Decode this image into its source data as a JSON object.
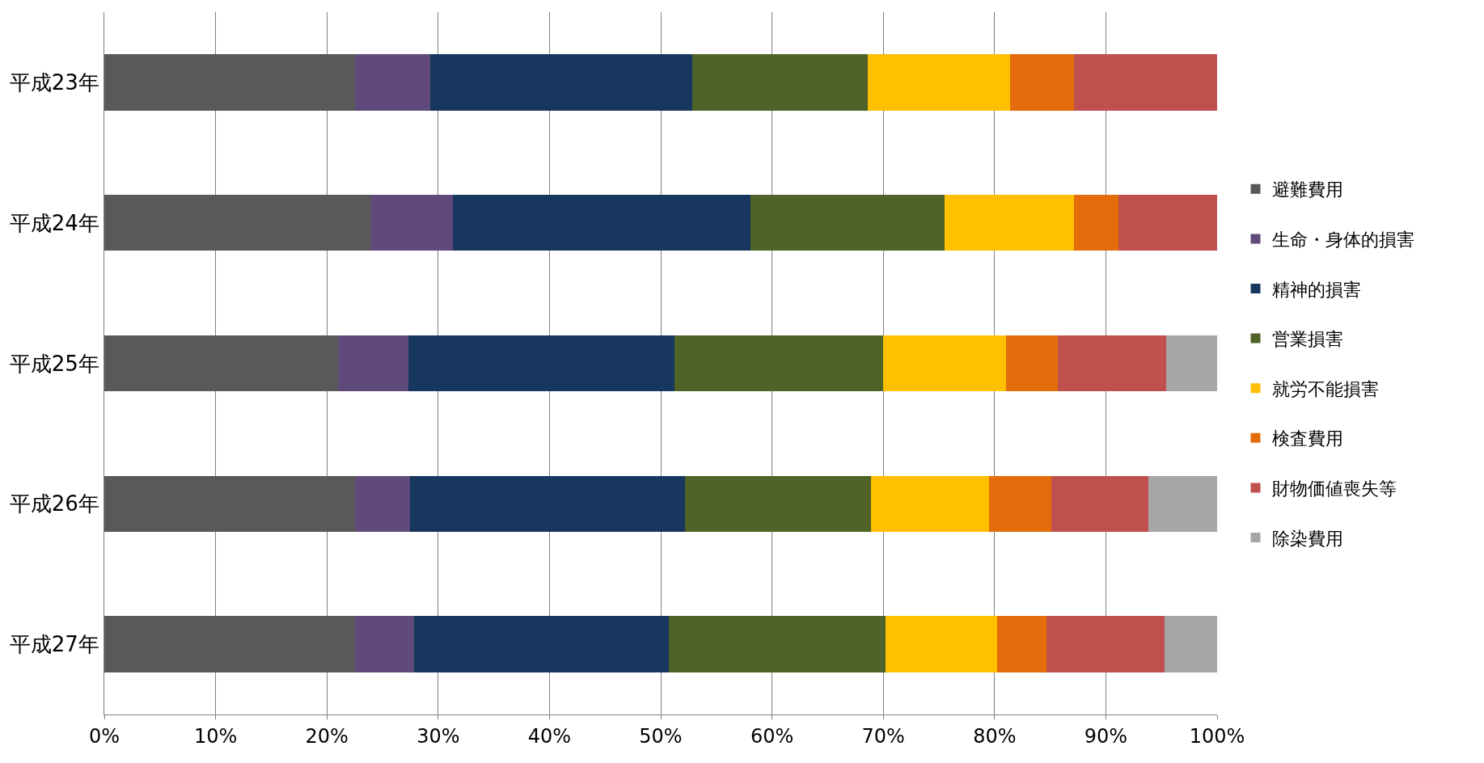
{
  "chart_data": {
    "type": "bar",
    "orientation": "horizontal",
    "stacked": true,
    "categories": [
      "平成23年",
      "平成24年",
      "平成25年",
      "平成26年",
      "平成27年"
    ],
    "series": [
      {
        "name": "避難費用",
        "color": "#595959",
        "values": [
          22.5,
          24.0,
          21.0,
          22.5,
          22.5
        ]
      },
      {
        "name": "生命・身体的損害",
        "color": "#604a7b",
        "values": [
          6.8,
          7.3,
          6.3,
          5.0,
          5.3
        ]
      },
      {
        "name": "精神的損害",
        "color": "#17375e",
        "values": [
          23.5,
          26.8,
          23.9,
          24.7,
          22.9
        ]
      },
      {
        "name": "営業損害",
        "color": "#4f6228",
        "values": [
          15.8,
          17.4,
          18.8,
          16.7,
          19.5
        ]
      },
      {
        "name": "就労不能損害",
        "color": "#ffc000",
        "values": [
          12.8,
          11.6,
          11.0,
          10.6,
          10.0
        ]
      },
      {
        "name": "検査費用",
        "color": "#e46c0a",
        "values": [
          5.7,
          4.0,
          4.7,
          5.6,
          4.5
        ]
      },
      {
        "name": "財物価値喪失等",
        "color": "#c0504d",
        "values": [
          12.9,
          8.9,
          9.7,
          8.7,
          10.6
        ]
      },
      {
        "name": "除染費用",
        "color": "#a6a6a6",
        "values": [
          0,
          0,
          4.6,
          6.2,
          4.7
        ]
      }
    ],
    "xlim": [
      0,
      100
    ],
    "xticks": [
      {
        "value": 0,
        "label": "0%"
      },
      {
        "value": 10,
        "label": "10%"
      },
      {
        "value": 20,
        "label": "20%"
      },
      {
        "value": 30,
        "label": "30%"
      },
      {
        "value": 40,
        "label": "40%"
      },
      {
        "value": 50,
        "label": "50%"
      },
      {
        "value": 60,
        "label": "60%"
      },
      {
        "value": 70,
        "label": "70%"
      },
      {
        "value": 80,
        "label": "80%"
      },
      {
        "value": 90,
        "label": "90%"
      },
      {
        "value": 100,
        "label": "100%"
      }
    ],
    "grid": "x",
    "legend": "right"
  }
}
